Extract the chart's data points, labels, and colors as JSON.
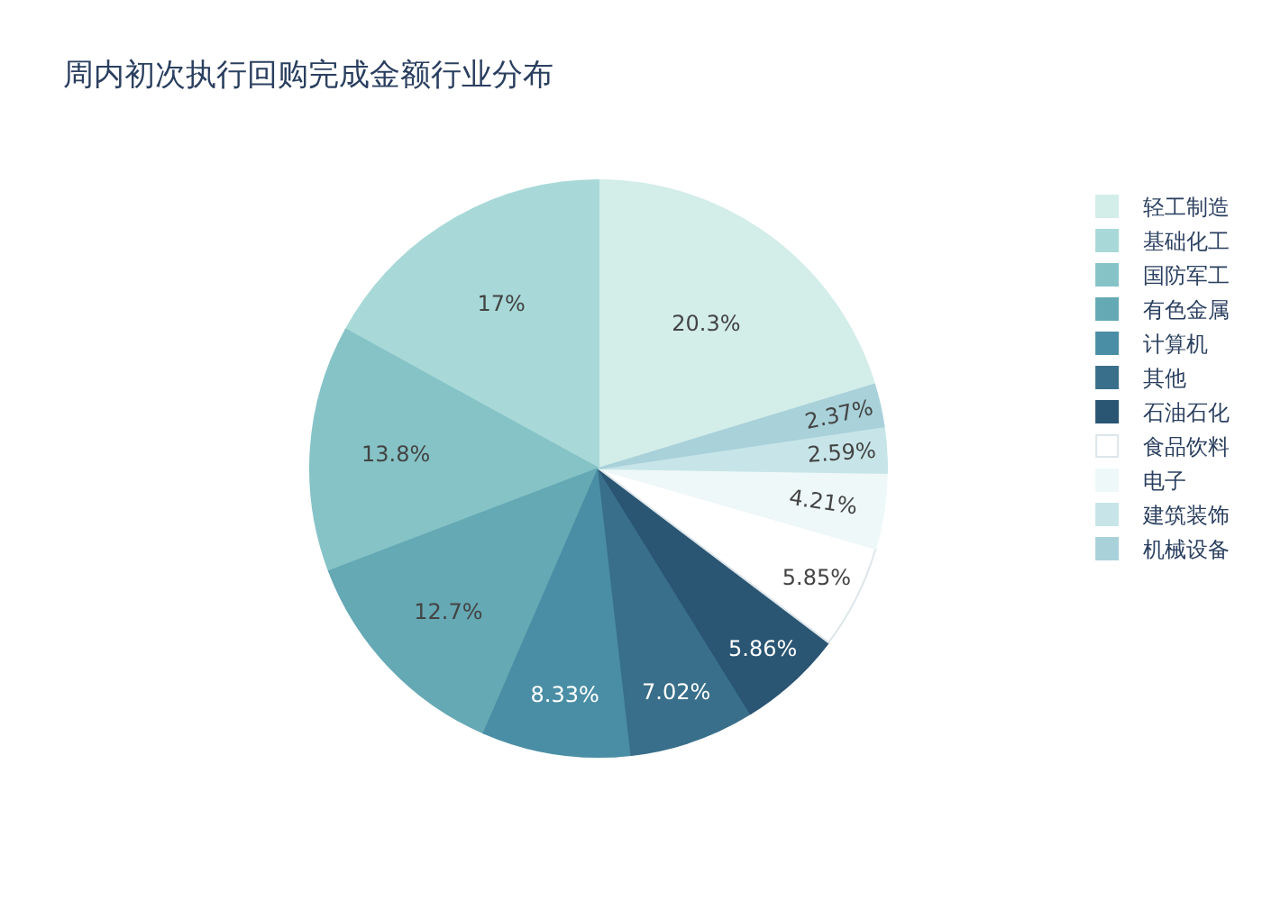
{
  "chart_data": {
    "type": "pie",
    "title": "周内初次执行回购完成金额行业分布",
    "categories": [
      "轻工制造",
      "基础化工",
      "国防军工",
      "有色金属",
      "计算机",
      "其他",
      "石油石化",
      "食品饮料",
      "电子",
      "建筑装饰",
      "机械设备"
    ],
    "values": [
      20.3,
      17,
      13.8,
      12.7,
      8.33,
      7.02,
      5.86,
      5.85,
      4.21,
      2.59,
      2.37
    ],
    "value_labels": [
      "20.3%",
      "17%",
      "13.8%",
      "12.7%",
      "8.33%",
      "7.02%",
      "5.86%",
      "5.85%",
      "4.21%",
      "2.59%",
      "2.37%"
    ],
    "colors": [
      "#d3ede9",
      "#a8d9d8",
      "#86c3c7",
      "#65a9b4",
      "#4a8ea5",
      "#396f8a",
      "#2a5573",
      "#ffffff",
      "#eef8f8",
      "#c7e5e8",
      "#a9d1da"
    ],
    "legend": "right"
  }
}
